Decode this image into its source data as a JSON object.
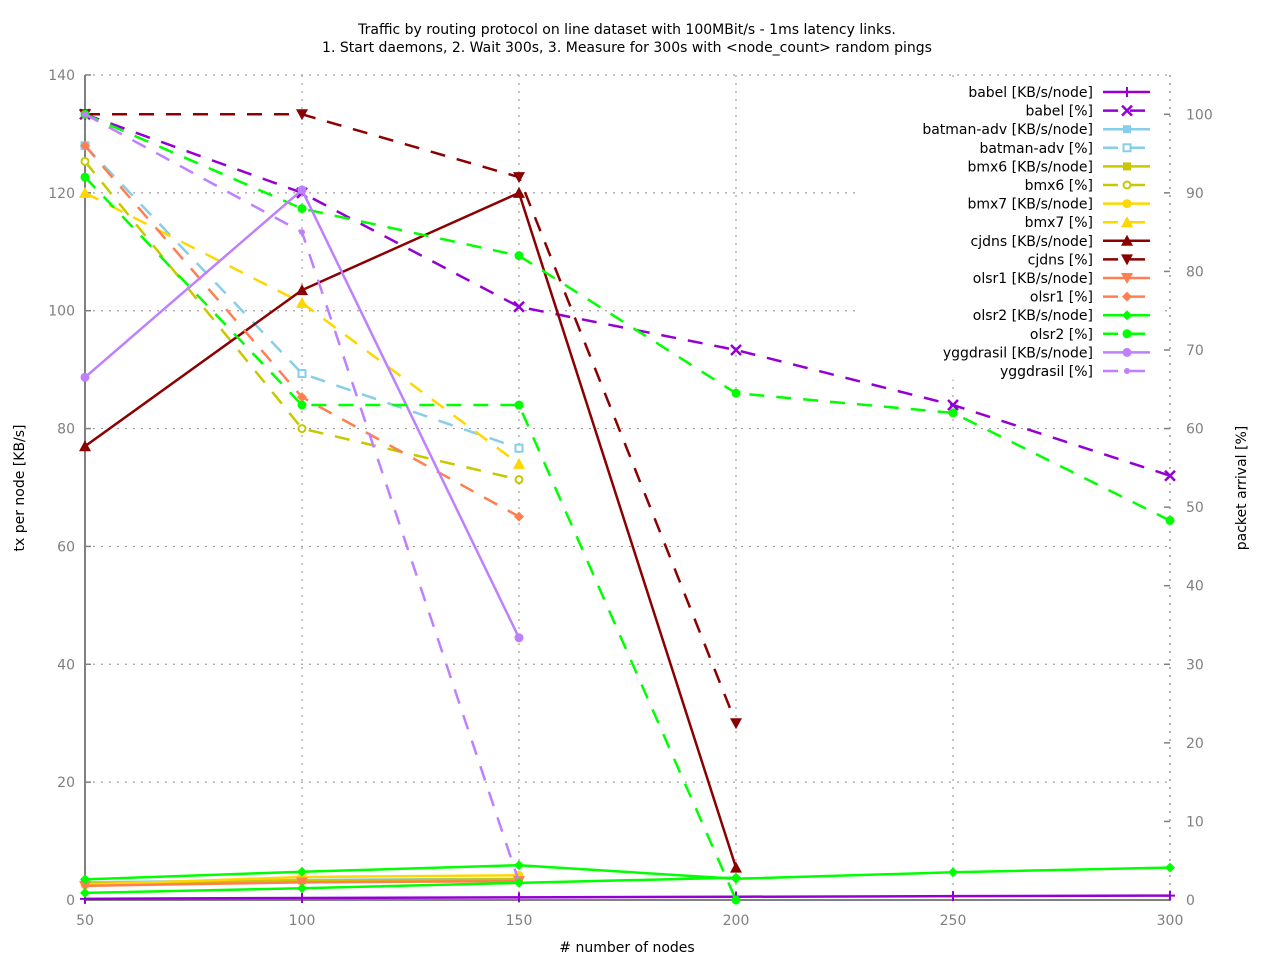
{
  "chart_data": {
    "type": "line",
    "title_line1": "Traffic by routing protocol on line dataset with 100MBit/s - 1ms latency links.",
    "title_line2": "1. Start daemons, 2. Wait 300s, 3. Measure for 300s with <node_count> random pings",
    "xlabel": "# number of nodes",
    "ylabel_left": "tx per node [KB/s]",
    "ylabel_right": "packet arrival [%]",
    "xlim": [
      50,
      300
    ],
    "ylim_left": [
      0,
      140
    ],
    "ylim_right": [
      0,
      105
    ],
    "x_ticks": [
      50,
      100,
      150,
      200,
      250,
      300
    ],
    "y_ticks_left": [
      0,
      20,
      40,
      60,
      80,
      100,
      120,
      140
    ],
    "y_ticks_right": [
      0,
      10,
      20,
      30,
      40,
      50,
      60,
      70,
      80,
      90,
      100
    ],
    "grid": true,
    "legend_position": "top-right",
    "series": [
      {
        "name": "babel [KB/s/node]",
        "axis": "left",
        "color": "#9400d3",
        "dashed": false,
        "marker": "plus",
        "x": [
          50,
          100,
          150,
          200,
          250,
          300
        ],
        "values": [
          0.2,
          0.35,
          0.45,
          0.55,
          0.65,
          0.75
        ]
      },
      {
        "name": "babel [%]",
        "axis": "right",
        "color": "#9400d3",
        "dashed": true,
        "marker": "cross",
        "x": [
          50,
          100,
          150,
          200,
          250,
          300
        ],
        "values": [
          100,
          90,
          75.5,
          70,
          63,
          54
        ]
      },
      {
        "name": "batman-adv [KB/s/node]",
        "axis": "left",
        "color": "#87ceeb",
        "dashed": false,
        "marker": "square",
        "x": [
          50,
          100,
          150
        ],
        "values": [
          3.0,
          3.4,
          3.6
        ]
      },
      {
        "name": "batman-adv [%]",
        "axis": "right",
        "color": "#87ceeb",
        "dashed": true,
        "marker": "square-open",
        "x": [
          50,
          100,
          150
        ],
        "values": [
          96,
          67,
          57.5
        ]
      },
      {
        "name": "bmx6 [KB/s/node]",
        "axis": "left",
        "color": "#c8c800",
        "dashed": false,
        "marker": "square",
        "x": [
          50,
          100,
          150
        ],
        "values": [
          2.8,
          3.3,
          3.5
        ]
      },
      {
        "name": "bmx6 [%]",
        "axis": "right",
        "color": "#c8c800",
        "dashed": true,
        "marker": "circle-open",
        "x": [
          50,
          100,
          150
        ],
        "values": [
          94,
          60,
          53.5
        ]
      },
      {
        "name": "bmx7 [KB/s/node]",
        "axis": "left",
        "color": "#ffd700",
        "dashed": false,
        "marker": "circle",
        "x": [
          50,
          100,
          150
        ],
        "values": [
          2.6,
          3.9,
          4.2
        ]
      },
      {
        "name": "bmx7 [%]",
        "axis": "right",
        "color": "#ffd700",
        "dashed": true,
        "marker": "triangle",
        "x": [
          50,
          100,
          150
        ],
        "values": [
          90,
          76,
          55.5
        ]
      },
      {
        "name": "cjdns [KB/s/node]",
        "axis": "left",
        "color": "#8b0000",
        "dashed": false,
        "marker": "triangle",
        "x": [
          50,
          100,
          150,
          200
        ],
        "values": [
          77,
          103.5,
          120,
          5.5
        ]
      },
      {
        "name": "cjdns [%]",
        "axis": "right",
        "color": "#8b0000",
        "dashed": true,
        "marker": "triangle-down",
        "x": [
          50,
          100,
          150,
          200
        ],
        "values": [
          100,
          100,
          92,
          22.5
        ]
      },
      {
        "name": "olsr1 [KB/s/node]",
        "axis": "left",
        "color": "#ff7f50",
        "dashed": false,
        "marker": "triangle-down",
        "x": [
          50,
          100,
          150
        ],
        "values": [
          2.4,
          3.0,
          3.2
        ]
      },
      {
        "name": "olsr1 [%]",
        "axis": "right",
        "color": "#ff7f50",
        "dashed": true,
        "marker": "diamond",
        "x": [
          50,
          100,
          150
        ],
        "values": [
          96,
          64,
          48.8
        ]
      },
      {
        "name": "olsr2 [KB/s/node]",
        "axis": "left",
        "color": "#00ff00",
        "dashed": false,
        "marker": "diamond",
        "x": [
          50,
          100,
          150,
          200,
          250,
          300
        ],
        "values": [
          3.5,
          4.8,
          5.9,
          3.6,
          4.7,
          5.5
        ]
      },
      {
        "name": "olsr2 [%]",
        "axis": "right",
        "color": "#00ff00",
        "dashed": true,
        "marker": "circle",
        "x": [
          50,
          100,
          150,
          200,
          250,
          300
        ],
        "values": [
          100,
          88,
          82,
          64.5,
          62,
          48.3
        ]
      },
      {
        "name": "yggdrasil [KB/s/node]",
        "axis": "left",
        "color": "#bf80ff",
        "dashed": false,
        "marker": "circle",
        "x": [
          50,
          100,
          150
        ],
        "values": [
          88.7,
          120.5,
          44.5
        ]
      },
      {
        "name": "yggdrasil [%]",
        "axis": "right",
        "color": "#bf80ff",
        "dashed": true,
        "marker": "dot",
        "x": [
          50,
          100,
          150
        ],
        "values": [
          100,
          85,
          2.3
        ]
      },
      {
        "name": "",
        "axis": "right",
        "color": "#00ff00",
        "dashed": true,
        "marker": "circle",
        "x": [
          50,
          100,
          150,
          200
        ],
        "values": [
          92,
          63,
          63,
          0
        ]
      },
      {
        "name": "",
        "axis": "left",
        "color": "#00ff00",
        "dashed": false,
        "marker": "diamond",
        "x": [
          50,
          100,
          150,
          200
        ],
        "values": [
          1.2,
          2.0,
          2.9,
          3.8
        ]
      }
    ]
  }
}
